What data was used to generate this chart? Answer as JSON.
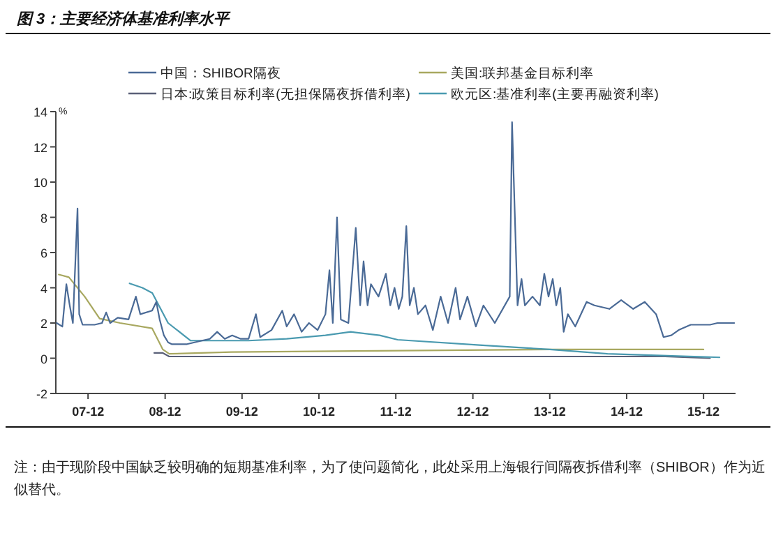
{
  "chart_data": {
    "type": "line",
    "title": "图 3：主要经济体基准利率水平",
    "ylabel": "%",
    "legend": "top",
    "grid": false,
    "marker": "none",
    "line_style": "solid",
    "xlim": [
      "2007-07-01",
      "2016-05-01"
    ],
    "xticks": [
      {
        "value": "2007-12",
        "label": "07-12"
      },
      {
        "value": "2008-12",
        "label": "08-12"
      },
      {
        "value": "2009-12",
        "label": "09-12"
      },
      {
        "value": "2010-12",
        "label": "10-12"
      },
      {
        "value": "2011-12",
        "label": "11-12"
      },
      {
        "value": "2012-12",
        "label": "12-12"
      },
      {
        "value": "2013-12",
        "label": "13-12"
      },
      {
        "value": "2014-12",
        "label": "14-12"
      },
      {
        "value": "2015-12",
        "label": "15-12"
      }
    ],
    "ylim": [
      -2,
      14
    ],
    "yticks": [
      -2,
      0,
      2,
      4,
      6,
      8,
      10,
      12,
      14
    ],
    "series": [
      {
        "name": "中国：SHIBOR隔夜",
        "color": "#4a6a96",
        "x": [
          "2007-07-05",
          "2007-08-01",
          "2007-08-20",
          "2007-09-05",
          "2007-09-20",
          "2007-10-12",
          "2007-10-20",
          "2007-11-05",
          "2008-01-01",
          "2008-02-05",
          "2008-02-25",
          "2008-03-15",
          "2008-04-20",
          "2008-06-10",
          "2008-07-15",
          "2008-08-05",
          "2008-09-30",
          "2008-10-20",
          "2008-11-05",
          "2008-11-25",
          "2008-12-15",
          "2009-01-01",
          "2009-03-15",
          "2009-05-25",
          "2009-07-01",
          "2009-08-05",
          "2009-09-10",
          "2009-10-15",
          "2009-11-25",
          "2010-01-01",
          "2010-02-05",
          "2010-02-25",
          "2010-04-20",
          "2010-06-10",
          "2010-07-01",
          "2010-08-05",
          "2010-09-10",
          "2010-10-15",
          "2010-11-25",
          "2011-01-01",
          "2011-01-20",
          "2011-02-05",
          "2011-02-25",
          "2011-03-15",
          "2011-04-20",
          "2011-05-25",
          "2011-06-15",
          "2011-07-01",
          "2011-07-20",
          "2011-08-05",
          "2011-09-10",
          "2011-10-15",
          "2011-11-05",
          "2011-11-25",
          "2011-12-15",
          "2012-01-01",
          "2012-01-20",
          "2012-02-05",
          "2012-02-25",
          "2012-03-15",
          "2012-04-20",
          "2012-05-25",
          "2012-07-01",
          "2012-08-05",
          "2012-09-10",
          "2012-10-01",
          "2012-11-05",
          "2012-12-15",
          "2013-01-20",
          "2013-03-15",
          "2013-05-25",
          "2013-06-05",
          "2013-07-01",
          "2013-07-20",
          "2013-08-05",
          "2013-09-10",
          "2013-10-15",
          "2013-11-05",
          "2013-11-25",
          "2013-12-15",
          "2014-01-01",
          "2014-01-20",
          "2014-02-05",
          "2014-02-25",
          "2014-04-01",
          "2014-05-25",
          "2014-07-01",
          "2014-09-10",
          "2014-11-05",
          "2015-01-01",
          "2015-02-25",
          "2015-04-20",
          "2015-05-25",
          "2015-07-01",
          "2015-08-05",
          "2015-10-01",
          "2016-01-01",
          "2016-02-05",
          "2016-03-15",
          "2016-04-25"
        ],
        "values": [
          2.0,
          1.8,
          4.2,
          3.0,
          2.0,
          8.5,
          2.5,
          1.9,
          1.9,
          2.0,
          2.6,
          2.0,
          2.3,
          2.2,
          3.5,
          2.5,
          2.7,
          3.2,
          2.2,
          1.3,
          0.9,
          0.8,
          0.8,
          1.0,
          1.1,
          1.5,
          1.1,
          1.3,
          1.1,
          1.1,
          2.5,
          1.2,
          1.6,
          2.7,
          1.8,
          2.5,
          1.5,
          2.0,
          1.6,
          2.5,
          5.0,
          2.0,
          8.0,
          2.2,
          2.0,
          7.4,
          3.0,
          5.5,
          3.0,
          4.2,
          3.5,
          4.8,
          3.0,
          4.0,
          2.8,
          3.5,
          7.5,
          3.0,
          4.0,
          2.5,
          3.0,
          1.6,
          3.5,
          2.0,
          4.0,
          2.2,
          3.5,
          1.8,
          3.0,
          2.0,
          3.5,
          13.4,
          3.0,
          4.5,
          3.0,
          3.5,
          3.0,
          4.8,
          3.5,
          4.5,
          3.0,
          4.0,
          1.5,
          2.5,
          1.8,
          3.2,
          3.0,
          2.8,
          3.3,
          2.8,
          3.2,
          2.5,
          1.2,
          1.3,
          1.6,
          1.9,
          1.9,
          2.0,
          2.0,
          2.0
        ]
      },
      {
        "name": "美国:联邦基金目标利率",
        "color": "#a8a860",
        "x": [
          "2007-07-15",
          "2007-09-01",
          "2007-11-15",
          "2008-01-25",
          "2008-05-01",
          "2008-09-30",
          "2008-11-20",
          "2008-12-20",
          "2009-10-10",
          "2013-12-10",
          "2015-12-01"
        ],
        "values": [
          4.75,
          4.6,
          3.5,
          2.25,
          2.0,
          1.7,
          0.5,
          0.25,
          0.35,
          0.5,
          0.5
        ]
      },
      {
        "name": "日本:政策目标利率(无担保隔夜拆借利率)",
        "color": "#5a6078",
        "x": [
          "2008-10-10",
          "2008-11-20",
          "2008-12-20",
          "2015-06-01",
          "2016-01-01"
        ],
        "values": [
          0.3,
          0.3,
          0.1,
          0.1,
          0.0
        ]
      },
      {
        "name": "欧元区:基准利率(主要再融资利率)",
        "color": "#4a9ab0",
        "x": [
          "2008-06-15",
          "2008-08-15",
          "2008-10-01",
          "2008-12-15",
          "2009-04-01",
          "2010-01-01",
          "2010-07-01",
          "2011-01-01",
          "2011-05-01",
          "2011-09-15",
          "2011-12-10",
          "2013-01-01",
          "2013-12-01",
          "2014-09-01",
          "2016-02-15"
        ],
        "values": [
          4.25,
          4.0,
          3.7,
          2.0,
          1.0,
          1.0,
          1.1,
          1.3,
          1.5,
          1.3,
          1.05,
          0.75,
          0.5,
          0.25,
          0.05
        ]
      }
    ],
    "annotations": [
      "注：由于现阶段中国缺乏较明确的短期基准利率，为了使问题简化，此处采用上海银行间隔夜拆借利率（SHIBOR）作为近似替代。"
    ]
  }
}
